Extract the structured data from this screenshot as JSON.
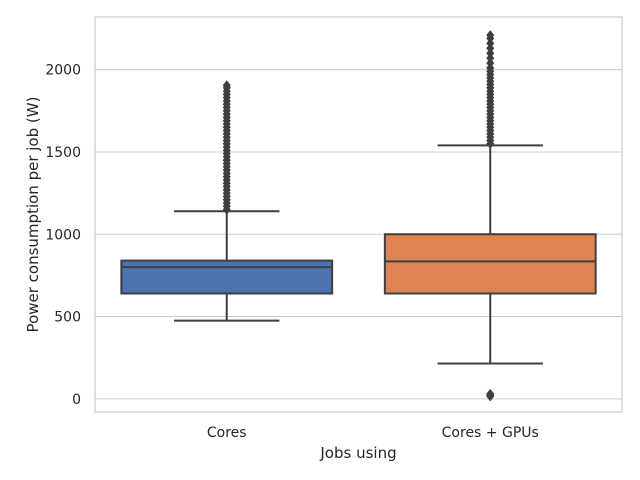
{
  "chart_data": {
    "type": "box",
    "title": "",
    "xlabel": "Jobs using",
    "ylabel": "Power consumption per job (W)",
    "categories": [
      "Cores",
      "Cores + GPUs"
    ],
    "yticks": [
      0,
      500,
      1000,
      1500,
      2000
    ],
    "ylim": [
      -80,
      2320
    ],
    "grid": true,
    "series": [
      {
        "category": "Cores",
        "color": "#4c72b0",
        "whisker_low": 475,
        "q1": 640,
        "median": 800,
        "q3": 840,
        "whisker_high": 1140,
        "outliers_low": [],
        "outliers_high": [
          1150,
          1170,
          1190,
          1210,
          1230,
          1250,
          1270,
          1290,
          1310,
          1330,
          1350,
          1370,
          1390,
          1410,
          1430,
          1450,
          1470,
          1490,
          1510,
          1530,
          1550,
          1570,
          1590,
          1610,
          1630,
          1650,
          1670,
          1690,
          1710,
          1730,
          1750,
          1770,
          1790,
          1810,
          1830,
          1850,
          1870,
          1890,
          1905
        ]
      },
      {
        "category": "Cores + GPUs",
        "color": "#dd8452",
        "whisker_low": 215,
        "q1": 640,
        "median": 835,
        "q3": 1000,
        "whisker_high": 1540,
        "outliers_low": [
          15,
          20,
          25,
          30
        ],
        "outliers_high": [
          1550,
          1570,
          1590,
          1610,
          1630,
          1650,
          1670,
          1690,
          1710,
          1730,
          1750,
          1770,
          1790,
          1810,
          1830,
          1850,
          1870,
          1890,
          1910,
          1930,
          1950,
          1970,
          1990,
          2010,
          2040,
          2070,
          2100,
          2130,
          2160,
          2190,
          2210
        ]
      }
    ]
  }
}
